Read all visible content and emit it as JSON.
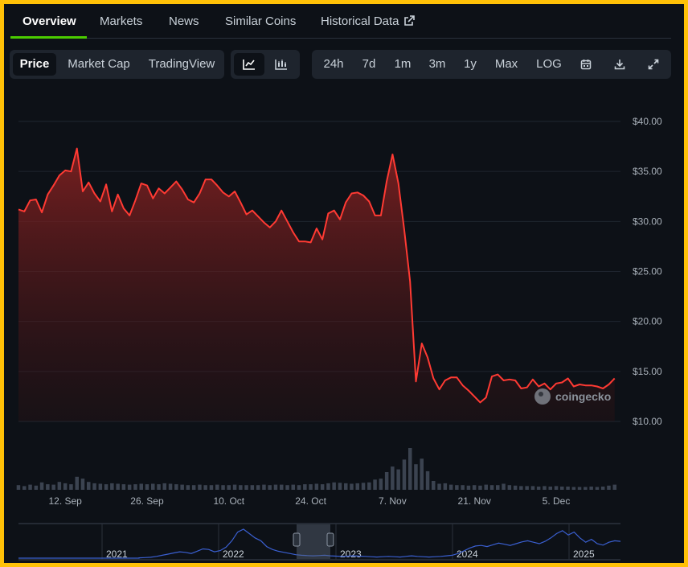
{
  "nav": {
    "tabs": [
      {
        "label": "Overview",
        "active": true
      },
      {
        "label": "Markets"
      },
      {
        "label": "News"
      },
      {
        "label": "Similar Coins"
      },
      {
        "label": "Historical Data",
        "icon": "external-link-icon"
      }
    ]
  },
  "toolbar": {
    "metric_tabs": [
      "Price",
      "Market Cap",
      "TradingView"
    ],
    "active_metric": "Price",
    "chart_type_icons": [
      "line-chart-icon",
      "candlestick-chart-icon"
    ],
    "ranges": [
      "24h",
      "7d",
      "1m",
      "3m",
      "1y",
      "Max",
      "LOG"
    ],
    "action_icons": [
      "calendar-icon",
      "download-icon",
      "expand-icon"
    ]
  },
  "watermark": "coingecko",
  "colors": {
    "line": "#ff3a33",
    "volume": "#3b4350",
    "accent": "#4bcc00",
    "navigator": "#3a5fd0"
  },
  "chart_data": {
    "type": "area",
    "y_ticks": [
      "$40.00",
      "$35.00",
      "$30.00",
      "$25.00",
      "$20.00",
      "$15.00",
      "$10.00"
    ],
    "ylim": [
      10,
      40
    ],
    "x_ticks": [
      {
        "label": "12. Sep",
        "day": 8
      },
      {
        "label": "26. Sep",
        "day": 22
      },
      {
        "label": "10. Oct",
        "day": 36
      },
      {
        "label": "24. Oct",
        "day": 50
      },
      {
        "label": "7. Nov",
        "day": 64
      },
      {
        "label": "21. Nov",
        "day": 78
      },
      {
        "label": "5. Dec",
        "day": 92
      }
    ],
    "xlim": [
      0,
      103
    ],
    "price": [
      [
        0,
        31.2
      ],
      [
        1,
        31.0
      ],
      [
        2,
        32.1
      ],
      [
        3,
        32.2
      ],
      [
        4,
        30.9
      ],
      [
        5,
        32.7
      ],
      [
        6,
        33.6
      ],
      [
        7,
        34.6
      ],
      [
        8,
        35.1
      ],
      [
        9,
        35.0
      ],
      [
        10,
        37.3
      ],
      [
        11,
        33.0
      ],
      [
        12,
        33.9
      ],
      [
        13,
        32.8
      ],
      [
        14,
        32.0
      ],
      [
        15,
        33.7
      ],
      [
        16,
        31.0
      ],
      [
        17,
        32.7
      ],
      [
        18,
        31.3
      ],
      [
        19,
        30.6
      ],
      [
        20,
        32.1
      ],
      [
        21,
        33.8
      ],
      [
        22,
        33.6
      ],
      [
        23,
        32.3
      ],
      [
        24,
        33.3
      ],
      [
        25,
        32.8
      ],
      [
        26,
        33.4
      ],
      [
        27,
        34.0
      ],
      [
        28,
        33.2
      ],
      [
        29,
        32.2
      ],
      [
        30,
        31.9
      ],
      [
        31,
        32.8
      ],
      [
        32,
        34.2
      ],
      [
        33,
        34.2
      ],
      [
        34,
        33.6
      ],
      [
        35,
        32.9
      ],
      [
        36,
        32.5
      ],
      [
        37,
        33.0
      ],
      [
        38,
        31.9
      ],
      [
        39,
        30.7
      ],
      [
        40,
        31.1
      ],
      [
        41,
        30.5
      ],
      [
        42,
        29.9
      ],
      [
        43,
        29.4
      ],
      [
        44,
        30.0
      ],
      [
        45,
        31.1
      ],
      [
        46,
        30.0
      ],
      [
        47,
        28.9
      ],
      [
        48,
        28.0
      ],
      [
        49,
        28.0
      ],
      [
        50,
        27.9
      ],
      [
        51,
        29.3
      ],
      [
        52,
        28.2
      ],
      [
        53,
        30.8
      ],
      [
        54,
        31.1
      ],
      [
        55,
        30.2
      ],
      [
        56,
        31.9
      ],
      [
        57,
        32.8
      ],
      [
        58,
        32.9
      ],
      [
        59,
        32.6
      ],
      [
        60,
        32.0
      ],
      [
        61,
        30.6
      ],
      [
        62,
        30.6
      ],
      [
        63,
        34.0
      ],
      [
        64,
        36.7
      ],
      [
        65,
        33.8
      ],
      [
        66,
        29.2
      ],
      [
        67,
        24.0
      ],
      [
        68,
        14.0
      ],
      [
        69,
        17.8
      ],
      [
        70,
        16.4
      ],
      [
        71,
        14.3
      ],
      [
        72,
        13.2
      ],
      [
        73,
        14.1
      ],
      [
        74,
        14.4
      ],
      [
        75,
        14.4
      ],
      [
        76,
        13.6
      ],
      [
        77,
        13.1
      ],
      [
        78,
        12.5
      ],
      [
        79,
        11.9
      ],
      [
        80,
        12.4
      ],
      [
        81,
        14.5
      ],
      [
        82,
        14.7
      ],
      [
        83,
        14.1
      ],
      [
        84,
        14.2
      ],
      [
        85,
        14.1
      ],
      [
        86,
        13.3
      ],
      [
        87,
        13.4
      ],
      [
        88,
        14.2
      ],
      [
        89,
        13.5
      ],
      [
        90,
        13.8
      ],
      [
        91,
        13.2
      ],
      [
        92,
        13.8
      ],
      [
        93,
        13.9
      ],
      [
        94,
        14.3
      ],
      [
        95,
        13.5
      ],
      [
        96,
        13.7
      ],
      [
        97,
        13.6
      ],
      [
        98,
        13.6
      ],
      [
        99,
        13.5
      ],
      [
        100,
        13.3
      ],
      [
        101,
        13.7
      ],
      [
        102,
        14.3
      ]
    ],
    "volume": [
      1.0,
      0.8,
      1.1,
      0.9,
      1.6,
      1.2,
      1.1,
      1.7,
      1.4,
      1.2,
      2.8,
      2.4,
      1.7,
      1.4,
      1.3,
      1.2,
      1.4,
      1.3,
      1.2,
      1.1,
      1.2,
      1.3,
      1.2,
      1.3,
      1.2,
      1.4,
      1.3,
      1.2,
      1.1,
      1.0,
      1.0,
      1.1,
      1.0,
      1.0,
      1.1,
      1.0,
      1.0,
      1.1,
      1.0,
      1.0,
      1.0,
      1.0,
      1.1,
      1.0,
      1.1,
      1.1,
      1.0,
      1.1,
      1.0,
      1.2,
      1.2,
      1.3,
      1.2,
      1.4,
      1.6,
      1.5,
      1.4,
      1.3,
      1.4,
      1.5,
      1.6,
      2.2,
      2.4,
      3.8,
      5.0,
      4.4,
      6.5,
      9.0,
      5.5,
      6.7,
      4.0,
      1.9,
      1.3,
      1.4,
      1.1,
      1.0,
      1.0,
      0.9,
      1.0,
      0.9,
      1.1,
      1.0,
      1.0,
      1.3,
      1.0,
      0.9,
      0.8,
      0.8,
      0.8,
      0.7,
      0.8,
      0.7,
      0.8,
      0.7,
      0.7,
      0.6,
      0.6,
      0.6,
      0.7,
      0.6,
      0.7,
      0.9,
      1.1
    ],
    "navigator": {
      "years": [
        "2021",
        "2022",
        "2023",
        "2024",
        "2025"
      ],
      "series": [
        1,
        2,
        3,
        6,
        10,
        14,
        18,
        22,
        20,
        16,
        24,
        32,
        30,
        22,
        26,
        38,
        60,
        90,
        100,
        85,
        70,
        60,
        40,
        30,
        24,
        20,
        16,
        12,
        10,
        9,
        8,
        9,
        10,
        8,
        7,
        6,
        7,
        8,
        7,
        6,
        5,
        4,
        5,
        6,
        5,
        4,
        6,
        8,
        6,
        5,
        4,
        5,
        6,
        8,
        10,
        16,
        25,
        35,
        42,
        44,
        40,
        46,
        52,
        48,
        44,
        50,
        56,
        60,
        55,
        50,
        58,
        70,
        85,
        95,
        80,
        90,
        70,
        55,
        65,
        50,
        45,
        55,
        60,
        58
      ]
    }
  }
}
